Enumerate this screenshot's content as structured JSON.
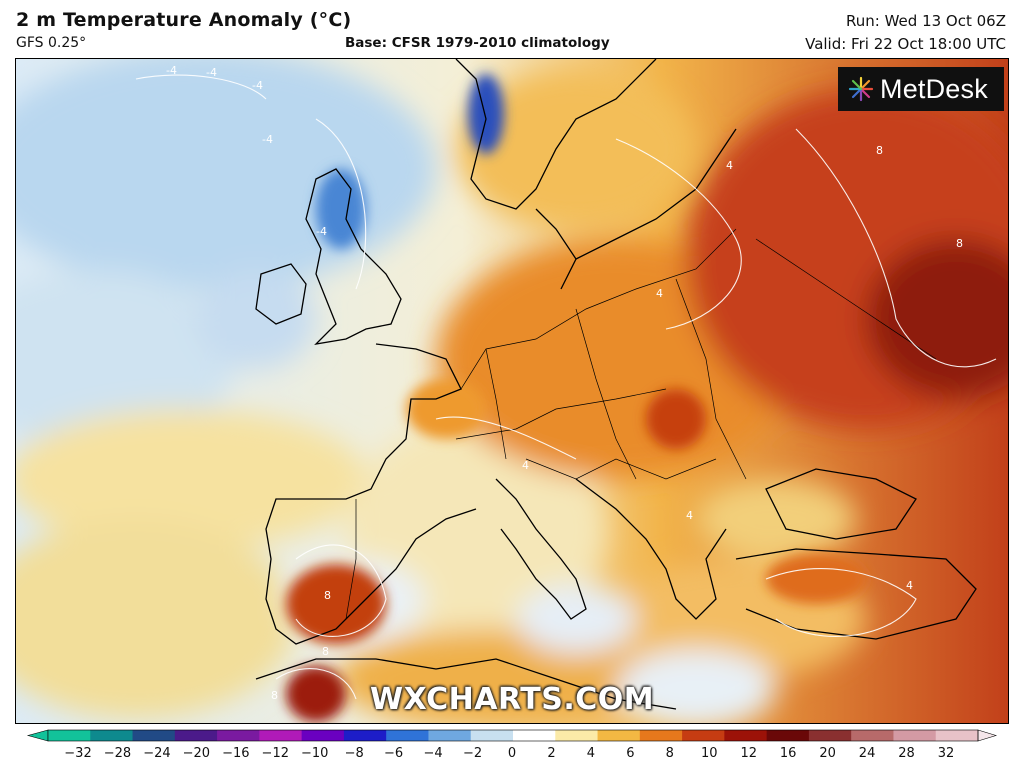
{
  "header": {
    "title": "2 m Temperature Anomaly (°C)",
    "model": "GFS 0.25°",
    "base": "Base: CFSR 1979-2010 climatology",
    "run": "Run: Wed 13 Oct 06Z",
    "valid": "Valid: Fri 22 Oct 18:00 UTC"
  },
  "logo": {
    "text": "MetDesk",
    "icon": "metdesk-starburst-icon"
  },
  "watermark": "WXCHARTS.COM",
  "map": {
    "region": "Europe",
    "contour_labels": [
      "-4",
      "-4",
      "-4",
      "-4",
      "-4",
      "4",
      "4",
      "4",
      "4",
      "4",
      "8",
      "8",
      "8",
      "8",
      "8"
    ]
  },
  "colorbar": {
    "ticks": [
      "−32",
      "−28",
      "−24",
      "−20",
      "−16",
      "−12",
      "−10",
      "−8",
      "−6",
      "−4",
      "−2",
      "0",
      "2",
      "4",
      "6",
      "8",
      "10",
      "12",
      "16",
      "20",
      "24",
      "28",
      "32"
    ],
    "colors": [
      "#12c29a",
      "#0e8a8e",
      "#214a86",
      "#4b1a8a",
      "#7a1aa0",
      "#b01ab8",
      "#6a00c0",
      "#1d1dc8",
      "#2f73d8",
      "#6fa8e0",
      "#c8e0f0",
      "#ffffff",
      "#fbeaa8",
      "#f3b843",
      "#e6781c",
      "#c63c12",
      "#9c1208",
      "#6a0808",
      "#8a3030",
      "#b76a6a",
      "#d49aa4",
      "#e8c2c8",
      "#f5e6ea"
    ]
  }
}
